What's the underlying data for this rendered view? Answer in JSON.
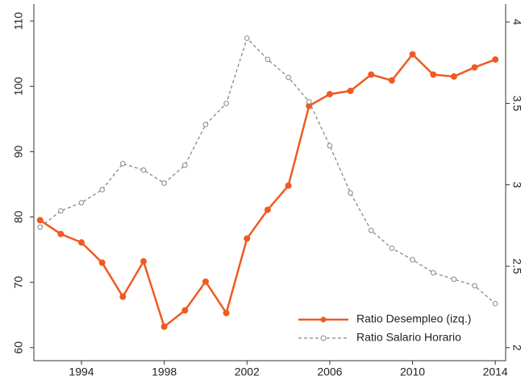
{
  "chart_data": {
    "type": "line",
    "x": [
      1992,
      1993,
      1994,
      1995,
      1996,
      1997,
      1998,
      1999,
      2000,
      2001,
      2002,
      2003,
      2004,
      2005,
      2006,
      2007,
      2008,
      2009,
      2010,
      2011,
      2012,
      2013,
      2014
    ],
    "xlim": [
      1991.7,
      2014.5
    ],
    "xticks": [
      1994,
      1998,
      2002,
      2006,
      2010,
      2014
    ],
    "ylim": [
      58.0,
      112.6
    ],
    "yticks": [
      60,
      70,
      80,
      90,
      100,
      110
    ],
    "y2lim": [
      1.92,
      4.11
    ],
    "y2ticks": [
      2,
      2.5,
      3,
      3.5,
      4
    ],
    "legend": "lower right",
    "series": [
      {
        "name": "Ratio Desempleo (izq.)",
        "color": "#f05a22",
        "linestyle": "solid",
        "marker": "filled",
        "values": [
          79.5,
          77.4,
          76.1,
          73.0,
          67.8,
          73.2,
          63.2,
          65.7,
          70.1,
          65.3,
          76.7,
          81.1,
          84.8,
          97.0,
          98.8,
          99.3,
          101.8,
          100.9,
          104.9,
          101.8,
          101.5,
          102.9,
          104.1
        ]
      },
      {
        "name": "Ratio Salario Horario",
        "color": "#888888",
        "linestyle": "dashed",
        "marker": "open",
        "axis": "y2",
        "values": [
          2.74,
          2.84,
          2.89,
          2.97,
          3.13,
          3.09,
          3.01,
          3.12,
          3.37,
          3.5,
          3.9,
          3.77,
          3.66,
          3.51,
          3.24,
          2.95,
          2.72,
          2.61,
          2.54,
          2.46,
          2.42,
          2.38,
          2.27
        ]
      }
    ]
  }
}
